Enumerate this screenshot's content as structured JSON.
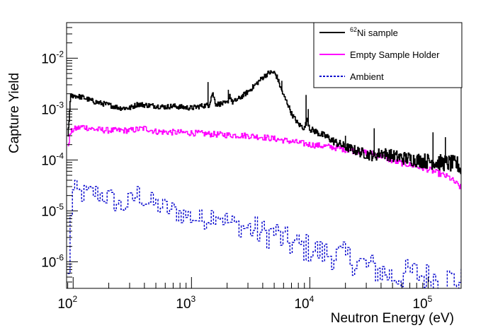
{
  "chart_data": {
    "type": "line",
    "title": "",
    "xlabel": "Neutron Energy (eV)",
    "ylabel": "Capture Yield",
    "xscale": "log",
    "yscale": "log",
    "xlim": [
      88,
      190000
    ],
    "ylim": [
      3e-07,
      0.05
    ],
    "x_tick_labels": [
      {
        "value": 100,
        "base": "10",
        "exp": "2"
      },
      {
        "value": 1000,
        "base": "10",
        "exp": "3"
      },
      {
        "value": 10000,
        "base": "10",
        "exp": "4"
      },
      {
        "value": 100000,
        "base": "10",
        "exp": "5"
      }
    ],
    "y_tick_labels": [
      {
        "value": 1e-06,
        "base": "10",
        "exp": "-6"
      },
      {
        "value": 1e-05,
        "base": "10",
        "exp": "-5"
      },
      {
        "value": 0.0001,
        "base": "10",
        "exp": "-4"
      },
      {
        "value": 0.001,
        "base": "10",
        "exp": "-3"
      },
      {
        "value": 0.01,
        "base": "10",
        "exp": "-2"
      }
    ],
    "grid": false,
    "legend_position": "top-right",
    "series": [
      {
        "name_sup": "62",
        "name": "Ni sample",
        "color": "#000000",
        "style": "solid",
        "x": [
          90,
          95,
          100,
          120,
          150,
          200,
          250,
          300,
          350,
          400,
          500,
          600,
          700,
          800,
          1000,
          1200,
          1400,
          1500,
          1600,
          2000,
          2100,
          2200,
          2500,
          3000,
          3500,
          4000,
          4500,
          5000,
          5300,
          5600,
          6000,
          6500,
          7000,
          8000,
          9000,
          9500,
          10000,
          11000,
          12000,
          14000,
          16000,
          20000,
          25000,
          30000,
          35000,
          40000,
          50000,
          60000,
          70000,
          80000,
          100000,
          120000,
          150000,
          180000,
          190000
        ],
        "y": [
          0.0003,
          0.0018,
          0.00185,
          0.0017,
          0.0014,
          0.0012,
          0.00105,
          0.00105,
          0.00125,
          0.0012,
          0.00115,
          0.0011,
          0.00115,
          0.0011,
          0.00105,
          0.00115,
          0.0012,
          0.0021,
          0.00125,
          0.0013,
          0.0019,
          0.00135,
          0.0016,
          0.0022,
          0.0031,
          0.0042,
          0.0052,
          0.0052,
          0.0041,
          0.0028,
          0.0018,
          0.00125,
          0.0008,
          0.0005,
          0.00042,
          0.00065,
          0.0004,
          0.00037,
          0.00033,
          0.00028,
          0.00023,
          0.00018,
          0.00015,
          0.00013,
          0.00012,
          0.00014,
          0.00012,
          0.00011,
          0.000105,
          0.0001,
          9.5e-05,
          9e-05,
          8.5e-05,
          8e-05,
          6e-05
        ]
      },
      {
        "name": "Empty Sample Holder",
        "color": "#ff00ff",
        "style": "solid",
        "x": [
          90,
          95,
          100,
          120,
          150,
          200,
          300,
          400,
          500,
          700,
          1000,
          1500,
          2000,
          3000,
          4000,
          5000,
          7000,
          10000,
          15000,
          20000,
          30000,
          40000,
          50000,
          70000,
          100000,
          150000,
          190000
        ],
        "y": [
          0.0002,
          0.00035,
          0.0004,
          0.00045,
          0.0004,
          0.00038,
          0.00038,
          0.00042,
          0.00036,
          0.00035,
          0.00034,
          0.00032,
          0.00031,
          0.0003,
          0.00028,
          0.00026,
          0.00023,
          0.0002,
          0.00018,
          0.00016,
          0.00014,
          0.00012,
          9.5e-05,
          8e-05,
          6.5e-05,
          4.5e-05,
          2.8e-05
        ]
      },
      {
        "name": "Ambient",
        "color": "#0000cc",
        "style": "dashed",
        "x": [
          90,
          95,
          100,
          110,
          130,
          150,
          200,
          250,
          300,
          350,
          400,
          500,
          600,
          800,
          1000,
          1200,
          1400,
          1600,
          2000,
          2500,
          3000,
          3500,
          4000,
          5000,
          6000,
          7000,
          8000,
          10000,
          12000,
          15000,
          20000,
          25000,
          30000,
          40000,
          50000,
          70000,
          100000,
          150000,
          190000
        ],
        "y": [
          5e-07,
          1.8e-05,
          2.5e-05,
          2.2e-05,
          2.1e-05,
          2.3e-05,
          1.8e-05,
          1.2e-05,
          1.5e-05,
          2.2e-05,
          1.6e-05,
          1.3e-05,
          1.1e-05,
          9e-06,
          7.5e-06,
          6.5e-06,
          8e-06,
          9.5e-06,
          6e-06,
          5e-06,
          4.5e-06,
          4e-06,
          3.5e-06,
          3.8e-06,
          2.5e-06,
          2.2e-06,
          2e-06,
          1.8e-06,
          1.5e-06,
          1.4e-06,
          1.2e-06,
          1e-06,
          8e-07,
          6.5e-07,
          5e-07,
          6e-07,
          5e-07,
          4.5e-07,
          4e-07
        ]
      }
    ]
  }
}
